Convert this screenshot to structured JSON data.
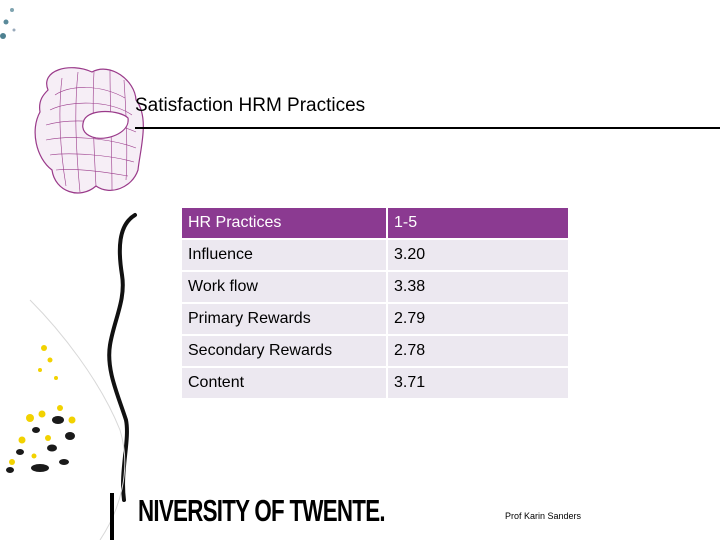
{
  "slide": {
    "title": "Satisfaction HRM Practices",
    "table": {
      "header": [
        "HR Practices",
        "1-5"
      ],
      "rows": [
        [
          "Influence",
          "3.20"
        ],
        [
          "Work flow",
          "3.38"
        ],
        [
          "Primary Rewards",
          "2.79"
        ],
        [
          "Secondary Rewards",
          "2.78"
        ],
        [
          "Content",
          "3.71"
        ]
      ]
    },
    "logo_text": "NIVERSITY OF TWENTE.",
    "author": "Prof Karin Sanders"
  },
  "colors": {
    "header_bg": "#8b3a91",
    "row_bg": "#ece8f0",
    "decor_purple": "#9a3a8a",
    "decor_yellow": "#f2d200"
  }
}
